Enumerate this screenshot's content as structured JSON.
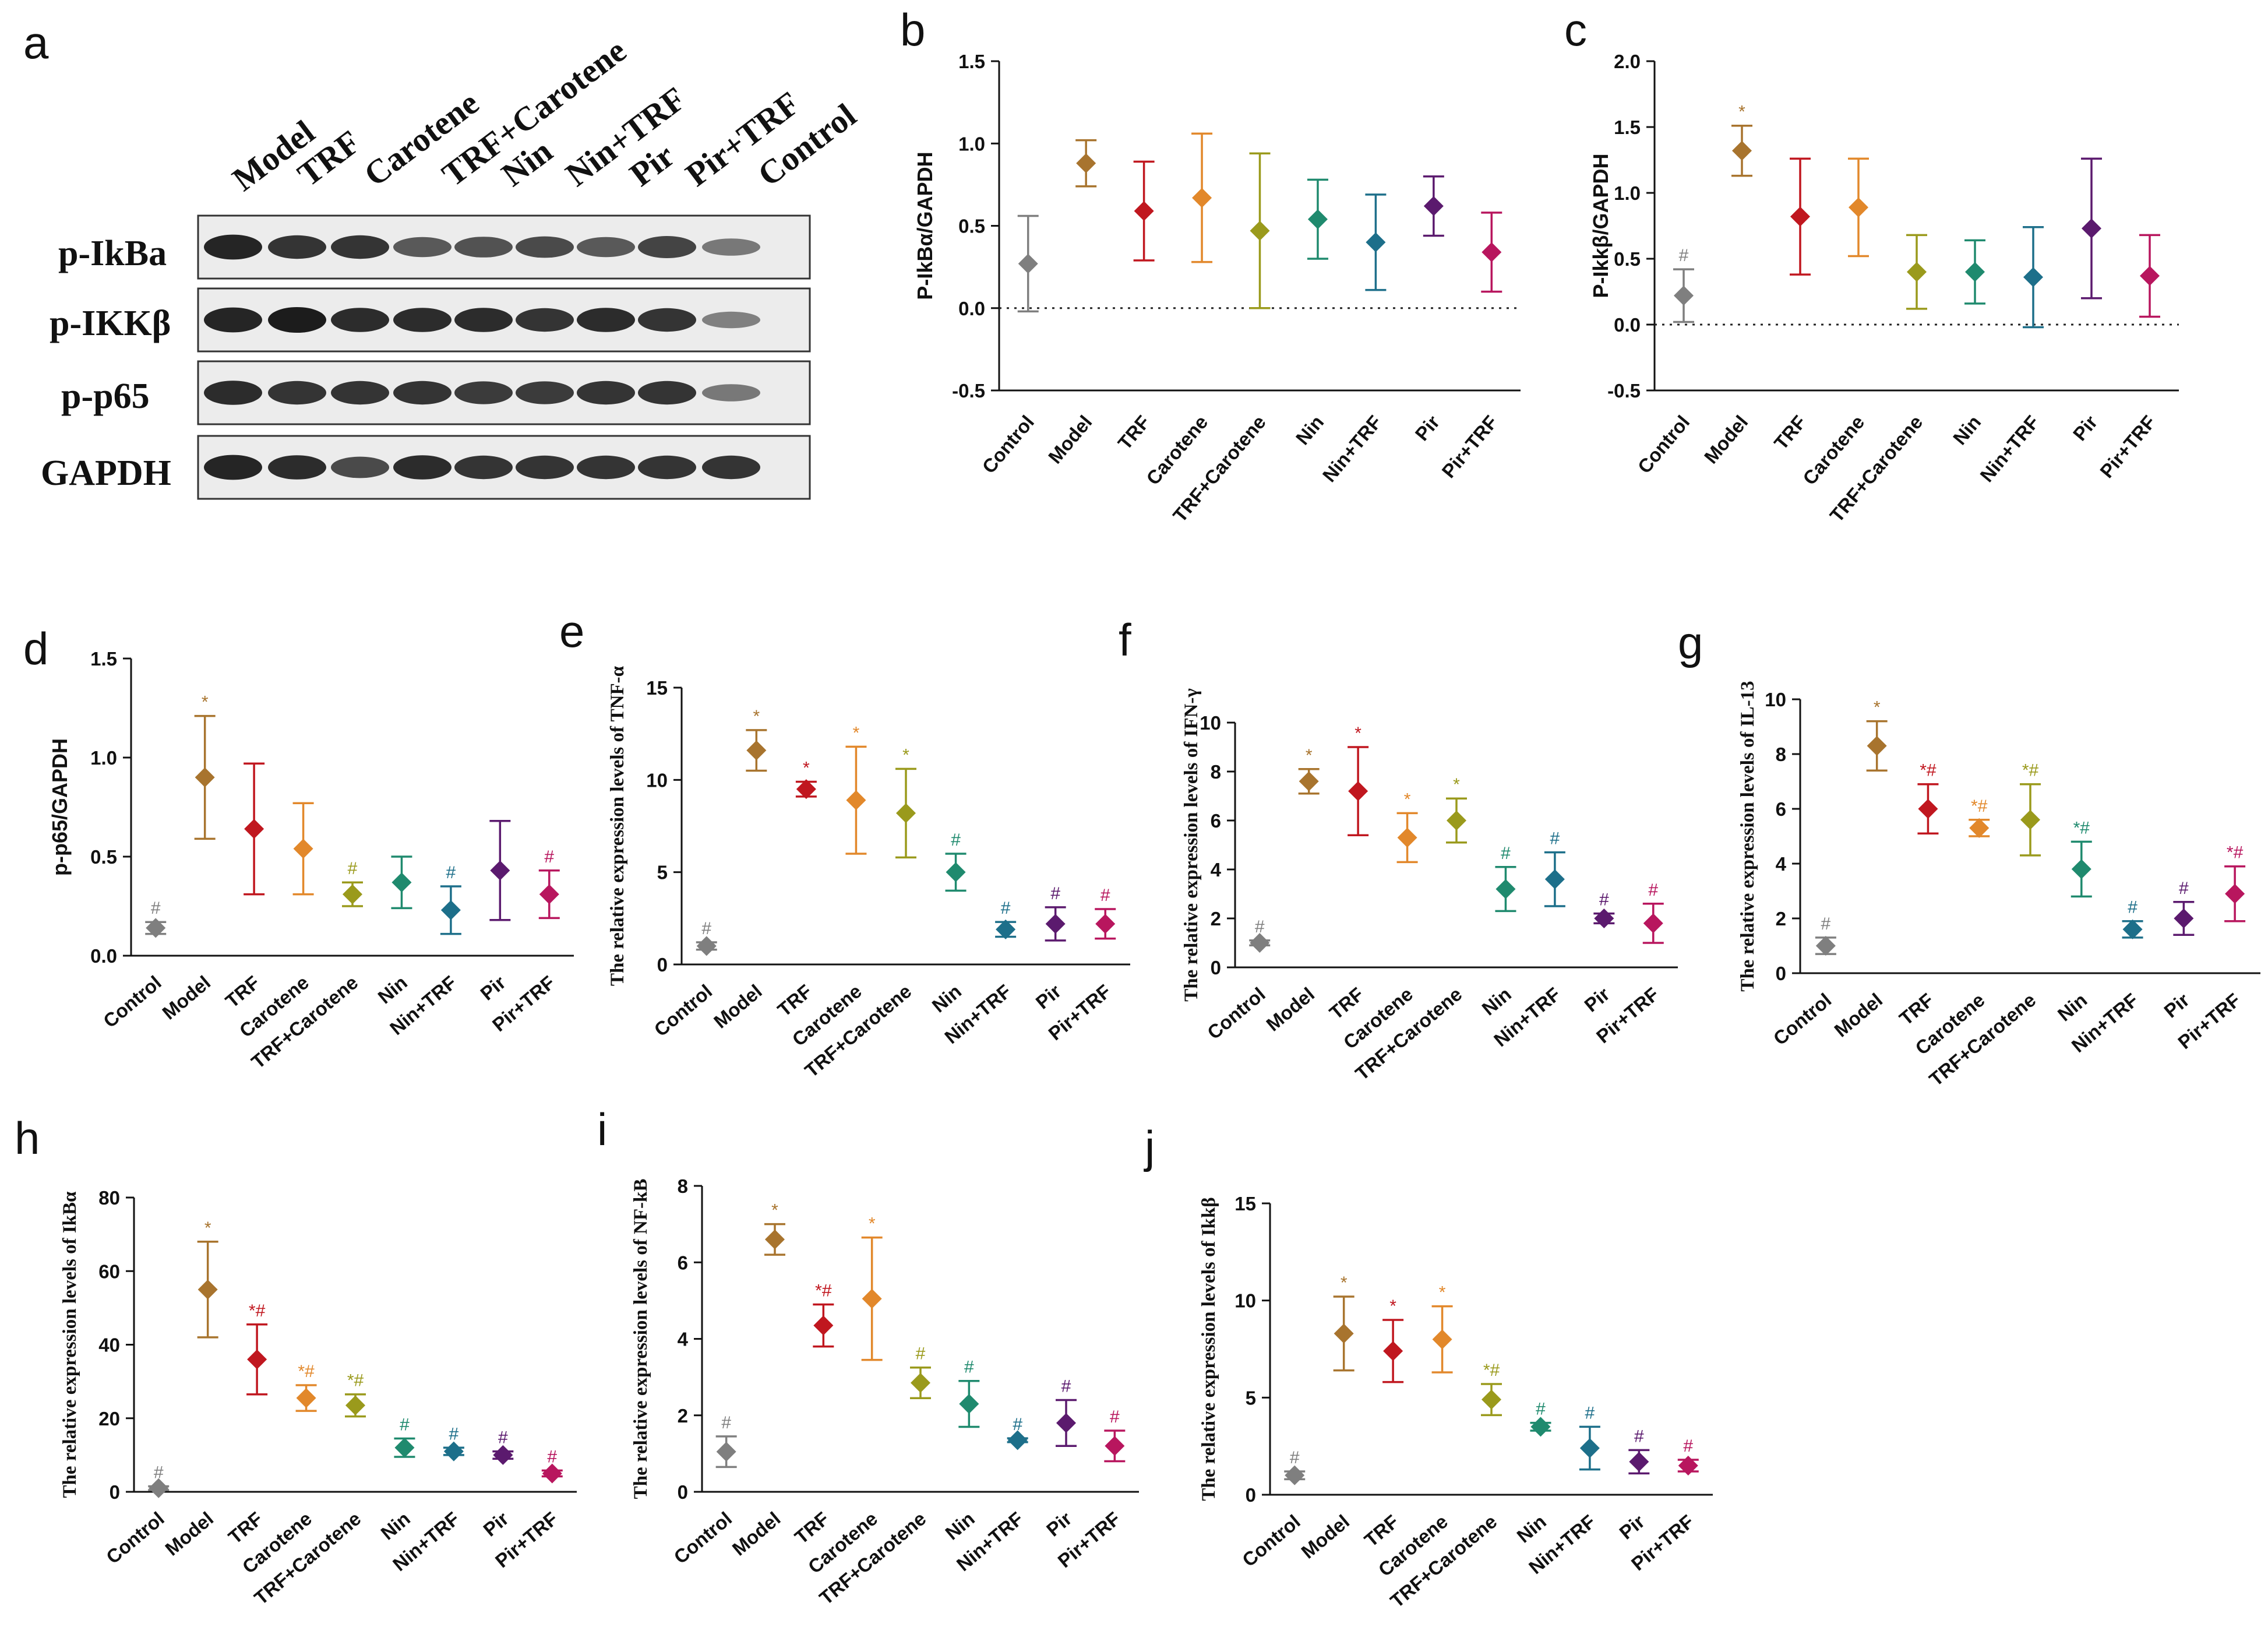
{
  "panel_letters": [
    "a",
    "b",
    "c",
    "d",
    "e",
    "f",
    "g",
    "h",
    "i",
    "j"
  ],
  "blot": {
    "lanes": [
      "Model",
      "TRF",
      "Carotene",
      "TRF+Carotene",
      "Nin",
      "Nin+TRF",
      "Pir",
      "Pir+TRF",
      "Control"
    ],
    "rows": [
      "p-IkBa",
      "p-IKKβ",
      "p-p65",
      "GAPDH"
    ],
    "band_intensity": [
      [
        0.95,
        0.85,
        0.85,
        0.6,
        0.65,
        0.7,
        0.6,
        0.75,
        0.4
      ],
      [
        0.95,
        1.0,
        0.9,
        0.9,
        0.9,
        0.85,
        0.9,
        0.85,
        0.35
      ],
      [
        0.9,
        0.85,
        0.85,
        0.85,
        0.8,
        0.8,
        0.85,
        0.85,
        0.4
      ],
      [
        0.95,
        0.9,
        0.7,
        0.9,
        0.85,
        0.85,
        0.85,
        0.85,
        0.85
      ]
    ]
  },
  "colors": {
    "Control": "#7f7f7f",
    "Model": "#a8742e",
    "TRF": "#c0171f",
    "Carotene": "#e2882b",
    "TRF+Carotene": "#9a9a1c",
    "Nin": "#1f8a6e",
    "Nin+TRF": "#1d6f8a",
    "Pir": "#5b1a6e",
    "Pir+TRF": "#b8165e"
  },
  "chart_data": [
    {
      "id": "b",
      "type": "scatter",
      "ylabel": "P-IkBα/GAPDH",
      "ylabel_style": "sans",
      "ylim": [
        -0.5,
        1.5
      ],
      "yticks": [
        "-0.5",
        "0.0",
        "0.5",
        "1.0",
        "1.5"
      ],
      "baseline": 0,
      "categories": [
        "Control",
        "Model",
        "TRF",
        "Carotene",
        "TRF+Carotene",
        "Nin",
        "Nin+TRF",
        "Pir",
        "Pir+TRF"
      ],
      "mean": [
        0.27,
        0.88,
        0.59,
        0.67,
        0.47,
        0.54,
        0.4,
        0.62,
        0.34
      ],
      "err": [
        0.29,
        0.14,
        0.3,
        0.39,
        0.47,
        0.24,
        0.29,
        0.18,
        0.24
      ],
      "sig": [
        "",
        "",
        "",
        "",
        "",
        "",
        "",
        "",
        ""
      ]
    },
    {
      "id": "c",
      "type": "scatter",
      "ylabel": "P-Ikkβ/GAPDH",
      "ylabel_style": "sans",
      "ylim": [
        -0.5,
        2.0
      ],
      "yticks": [
        "-0.5",
        "0.0",
        "0.5",
        "1.0",
        "1.5",
        "2.0"
      ],
      "baseline": 0,
      "categories": [
        "Control",
        "Model",
        "TRF",
        "Carotene",
        "TRF+Carotene",
        "Nin",
        "Nin+TRF",
        "Pir",
        "Pir+TRF"
      ],
      "mean": [
        0.22,
        1.32,
        0.82,
        0.89,
        0.4,
        0.4,
        0.36,
        0.73,
        0.37
      ],
      "err": [
        0.2,
        0.19,
        0.44,
        0.37,
        0.28,
        0.24,
        0.38,
        0.53,
        0.31
      ],
      "sig": [
        "#",
        "*",
        "",
        "",
        "",
        "",
        "",
        "",
        ""
      ]
    },
    {
      "id": "d",
      "type": "scatter",
      "ylabel": "p-p65/GAPDH",
      "ylabel_style": "sans",
      "ylim": [
        0,
        1.5
      ],
      "yticks": [
        "0.0",
        "0.5",
        "1.0",
        "1.5"
      ],
      "categories": [
        "Control",
        "Model",
        "TRF",
        "Carotene",
        "TRF+Carotene",
        "Nin",
        "Nin+TRF",
        "Pir",
        "Pir+TRF"
      ],
      "mean": [
        0.14,
        0.9,
        0.64,
        0.54,
        0.31,
        0.37,
        0.23,
        0.43,
        0.31
      ],
      "err": [
        0.03,
        0.31,
        0.33,
        0.23,
        0.06,
        0.13,
        0.12,
        0.25,
        0.12
      ],
      "sig": [
        "#",
        "*",
        "",
        "",
        "#",
        "",
        "#",
        "",
        "#"
      ]
    },
    {
      "id": "e",
      "type": "scatter",
      "ylabel": "The relative expression levels of TNF-α",
      "ylabel_style": "serif",
      "ylim": [
        0,
        15
      ],
      "yticks": [
        "0",
        "5",
        "10",
        "15"
      ],
      "categories": [
        "Control",
        "Model",
        "TRF",
        "Carotene",
        "TRF+Carotene",
        "Nin",
        "Nin+TRF",
        "Pir",
        "Pir+TRF"
      ],
      "mean": [
        1.0,
        11.6,
        9.5,
        8.9,
        8.2,
        5.0,
        1.9,
        2.2,
        2.2
      ],
      "err": [
        0.2,
        1.1,
        0.4,
        2.9,
        2.4,
        1.0,
        0.4,
        0.9,
        0.8
      ],
      "sig": [
        "#",
        "*",
        "*",
        "*",
        "*",
        "#",
        "#",
        "#",
        "#"
      ]
    },
    {
      "id": "f",
      "type": "scatter",
      "ylabel": "The relative expression levels of IFN-γ",
      "ylabel_style": "serif",
      "ylim": [
        0,
        10
      ],
      "yticks": [
        "0",
        "2",
        "4",
        "6",
        "8",
        "10"
      ],
      "categories": [
        "Control",
        "Model",
        "TRF",
        "Carotene",
        "TRF+Carotene",
        "Nin",
        "Nin+TRF",
        "Pir",
        "Pir+TRF"
      ],
      "mean": [
        1.0,
        7.6,
        7.2,
        5.3,
        6.0,
        3.2,
        3.6,
        2.0,
        1.8
      ],
      "err": [
        0.1,
        0.5,
        1.8,
        1.0,
        0.9,
        0.9,
        1.1,
        0.2,
        0.8
      ],
      "sig": [
        "#",
        "*",
        "*",
        "*",
        "*",
        "#",
        "#",
        "#",
        "#"
      ]
    },
    {
      "id": "g",
      "type": "scatter",
      "ylabel": "The relative expression levels of IL-13",
      "ylabel_style": "serif",
      "ylim": [
        0,
        10
      ],
      "yticks": [
        "0",
        "2",
        "4",
        "6",
        "8",
        "10"
      ],
      "categories": [
        "Control",
        "Model",
        "TRF",
        "Carotene",
        "TRF+Carotene",
        "Nin",
        "Nin+TRF",
        "Pir",
        "Pir+TRF"
      ],
      "mean": [
        1.0,
        8.3,
        6.0,
        5.3,
        5.6,
        3.8,
        1.6,
        2.0,
        2.9
      ],
      "err": [
        0.3,
        0.9,
        0.9,
        0.3,
        1.3,
        1.0,
        0.3,
        0.6,
        1.0
      ],
      "sig": [
        "#",
        "*",
        "*#",
        "*#",
        "*#",
        "*#",
        "#",
        "#",
        "*#"
      ]
    },
    {
      "id": "h",
      "type": "scatter",
      "ylabel": "The relative expression levels of IkBα",
      "ylabel_style": "serif",
      "ylim": [
        0,
        80
      ],
      "yticks": [
        "0",
        "20",
        "40",
        "60",
        "80"
      ],
      "categories": [
        "Control",
        "Model",
        "TRF",
        "Carotene",
        "TRF+Carotene",
        "Nin",
        "Nin+TRF",
        "Pir",
        "Pir+TRF"
      ],
      "mean": [
        1.0,
        55.0,
        36.0,
        25.5,
        23.5,
        12.0,
        11.0,
        10.0,
        5.0
      ],
      "err": [
        0.5,
        13.0,
        9.5,
        3.5,
        3.0,
        2.5,
        1.0,
        1.0,
        0.8
      ],
      "sig": [
        "#",
        "*",
        "*#",
        "*#",
        "*#",
        "#",
        "#",
        "#",
        "#"
      ]
    },
    {
      "id": "i",
      "type": "scatter",
      "ylabel": "The relative expression levels of NF-kB",
      "ylabel_style": "serif",
      "ylim": [
        0,
        8
      ],
      "yticks": [
        "0",
        "2",
        "4",
        "6",
        "8"
      ],
      "categories": [
        "Control",
        "Model",
        "TRF",
        "Carotene",
        "TRF+Carotene",
        "Nin",
        "Nin+TRF",
        "Pir",
        "Pir+TRF"
      ],
      "mean": [
        1.05,
        6.6,
        4.35,
        5.05,
        2.85,
        2.3,
        1.35,
        1.8,
        1.2
      ],
      "err": [
        0.4,
        0.4,
        0.55,
        1.6,
        0.4,
        0.6,
        0.05,
        0.6,
        0.4
      ],
      "sig": [
        "#",
        "*",
        "*#",
        "*",
        "#",
        "#",
        "#",
        "#",
        "#"
      ]
    },
    {
      "id": "j",
      "type": "scatter",
      "ylabel": "The relative expression levels of Ikkβ",
      "ylabel_style": "serif",
      "ylim": [
        0,
        15
      ],
      "yticks": [
        "0",
        "5",
        "10",
        "15"
      ],
      "categories": [
        "Control",
        "Model",
        "TRF",
        "Carotene",
        "TRF+Carotene",
        "Nin",
        "Nin+TRF",
        "Pir",
        "Pir+TRF"
      ],
      "mean": [
        1.0,
        8.3,
        7.4,
        8.0,
        4.9,
        3.5,
        2.4,
        1.7,
        1.5
      ],
      "err": [
        0.2,
        1.9,
        1.6,
        1.7,
        0.8,
        0.2,
        1.1,
        0.6,
        0.3
      ],
      "sig": [
        "#",
        "*",
        "*",
        "*",
        "*#",
        "#",
        "#",
        "#",
        "#"
      ]
    }
  ]
}
